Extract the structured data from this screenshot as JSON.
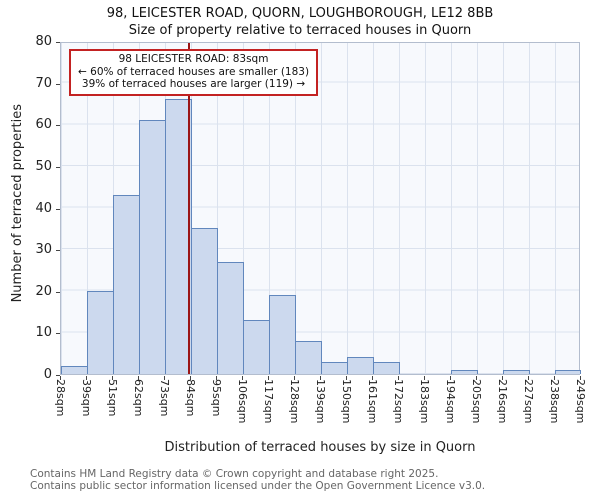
{
  "header": {
    "title": "98, LEICESTER ROAD, QUORN, LOUGHBOROUGH, LE12 8BB",
    "subtitle": "Size of property relative to terraced houses in Quorn"
  },
  "chart_data": {
    "type": "bar",
    "title": "98, LEICESTER ROAD, QUORN, LOUGHBOROUGH, LE12 8BB",
    "subtitle": "Size of property relative to terraced houses in Quorn",
    "xlabel": "Distribution of terraced houses by size in Quorn",
    "ylabel": "Number of terraced properties",
    "categories": [
      "28sqm",
      "39sqm",
      "51sqm",
      "62sqm",
      "73sqm",
      "84sqm",
      "95sqm",
      "106sqm",
      "117sqm",
      "128sqm",
      "139sqm",
      "150sqm",
      "161sqm",
      "172sqm",
      "183sqm",
      "194sqm",
      "205sqm",
      "216sqm",
      "227sqm",
      "238sqm",
      "249sqm"
    ],
    "bin_edges_sqm": [
      28,
      39,
      51,
      62,
      73,
      84,
      95,
      106,
      117,
      128,
      139,
      150,
      161,
      172,
      183,
      194,
      205,
      216,
      227,
      238,
      249
    ],
    "values": [
      2,
      20,
      43,
      61,
      66,
      35,
      27,
      13,
      19,
      8,
      3,
      4,
      3,
      0,
      0,
      1,
      0,
      1,
      0,
      1
    ],
    "ylim": [
      0,
      80
    ],
    "yticks": [
      0,
      10,
      20,
      30,
      40,
      50,
      60,
      70,
      80
    ],
    "grid": true,
    "legend": "none",
    "bar_fill": "#ccd9ee",
    "bar_stroke": "#6187bd",
    "marker": {
      "sqm": 83,
      "line_color": "#9b1515",
      "label_lines": [
        "98 LEICESTER ROAD: 83sqm",
        "← 60% of terraced houses are smaller (183)",
        "39% of terraced houses are larger (119) →"
      ]
    }
  },
  "footer": {
    "line1": "Contains HM Land Registry data © Crown copyright and database right 2025.",
    "line2": "Contains public sector information licensed under the Open Government Licence v3.0."
  }
}
